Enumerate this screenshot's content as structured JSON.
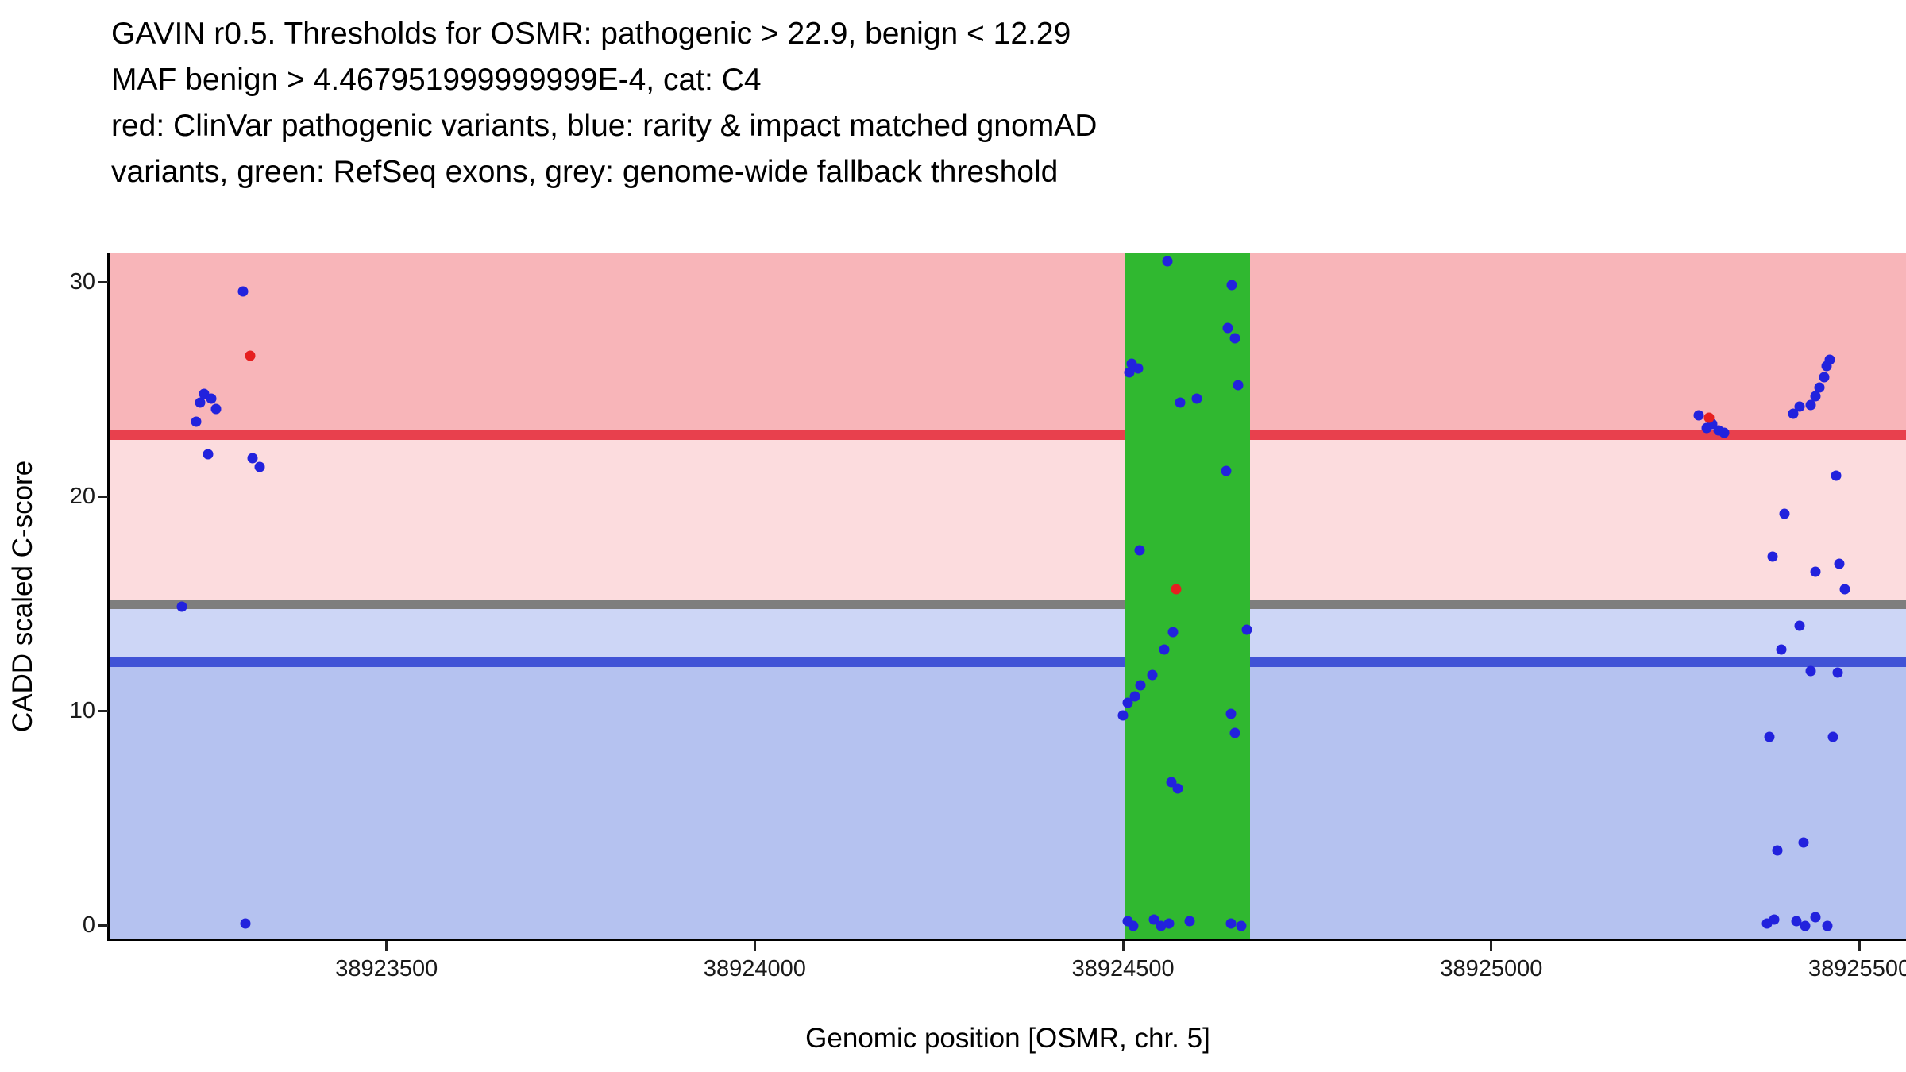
{
  "chart_data": {
    "type": "scatter",
    "title_lines": [
      "GAVIN r0.5. Thresholds for OSMR: pathogenic > 22.9, benign < 12.29",
      "MAF benign > 4.467951999999999E-4, cat: C4",
      "red: ClinVar pathogenic variants, blue: rarity & impact matched gnomAD",
      "variants, green: RefSeq exons, grey: genome-wide fallback threshold"
    ],
    "xlabel": "Genomic position [OSMR, chr. 5]",
    "ylabel": "CADD scaled C-score",
    "x_ticks": [
      38923500,
      38924000,
      38924500,
      38925000,
      38925500
    ],
    "y_ticks": [
      0,
      10,
      20,
      30
    ],
    "xlim": [
      38923124,
      38925563
    ],
    "ylim": [
      -0.6,
      31.4
    ],
    "thresholds": {
      "pathogenic": 22.9,
      "benign": 12.29,
      "fallback": 15.0
    },
    "exons": [
      {
        "start": 38924502,
        "end": 38924672
      }
    ],
    "colors": {
      "background": "#FFFFFF",
      "band_pathogenic": "#F8B5B9",
      "band_intermediate": "#FCDCDE",
      "band_benign_upper": "#CDD6F6",
      "band_benign": "#B5C2F0",
      "line_pathogenic": "#E8404D",
      "line_fallback": "#7E7E7E",
      "line_benign": "#4153D6",
      "exon": "#30B830",
      "point_blue": "#2222DD",
      "point_red": "#E62020",
      "axis": "#000000",
      "tick_text": "#1A1A1A"
    },
    "series": [
      {
        "key": "gnomad",
        "name": "rarity & impact matched gnomAD variants",
        "color": "#2222DD",
        "points": [
          [
            38923305,
            29.6
          ],
          [
            38923252,
            24.8
          ],
          [
            38923262,
            24.6
          ],
          [
            38923247,
            24.4
          ],
          [
            38923268,
            24.1
          ],
          [
            38923242,
            23.5
          ],
          [
            38923258,
            22.0
          ],
          [
            38923318,
            21.8
          ],
          [
            38923328,
            21.4
          ],
          [
            38923222,
            14.9
          ],
          [
            38923308,
            0.1
          ],
          [
            38924560,
            31.0
          ],
          [
            38924648,
            29.9
          ],
          [
            38924642,
            27.9
          ],
          [
            38924652,
            27.4
          ],
          [
            38924512,
            26.2
          ],
          [
            38924520,
            26.0
          ],
          [
            38924508,
            25.8
          ],
          [
            38924656,
            25.2
          ],
          [
            38924600,
            24.6
          ],
          [
            38924578,
            24.4
          ],
          [
            38924640,
            21.2
          ],
          [
            38924522,
            17.5
          ],
          [
            38924668,
            13.8
          ],
          [
            38924568,
            13.7
          ],
          [
            38924556,
            12.9
          ],
          [
            38924540,
            11.7
          ],
          [
            38924524,
            11.2
          ],
          [
            38924516,
            10.7
          ],
          [
            38924506,
            10.4
          ],
          [
            38924500,
            9.8
          ],
          [
            38924646,
            9.9
          ],
          [
            38924652,
            9.0
          ],
          [
            38924566,
            6.7
          ],
          [
            38924574,
            6.4
          ],
          [
            38924506,
            0.2
          ],
          [
            38924514,
            0.0
          ],
          [
            38924542,
            0.3
          ],
          [
            38924552,
            0.0
          ],
          [
            38924562,
            0.1
          ],
          [
            38924590,
            0.2
          ],
          [
            38924646,
            0.1
          ],
          [
            38924660,
            0.0
          ],
          [
            38925282,
            23.8
          ],
          [
            38925300,
            23.4
          ],
          [
            38925292,
            23.2
          ],
          [
            38925308,
            23.1
          ],
          [
            38925316,
            23.0
          ],
          [
            38925418,
            24.2
          ],
          [
            38925410,
            23.9
          ],
          [
            38925452,
            25.6
          ],
          [
            38925446,
            25.1
          ],
          [
            38925440,
            24.7
          ],
          [
            38925434,
            24.3
          ],
          [
            38925460,
            26.4
          ],
          [
            38925455,
            26.1
          ],
          [
            38925468,
            21.0
          ],
          [
            38925398,
            19.2
          ],
          [
            38925382,
            17.2
          ],
          [
            38925440,
            16.5
          ],
          [
            38925472,
            16.9
          ],
          [
            38925480,
            15.7
          ],
          [
            38925418,
            14.0
          ],
          [
            38925394,
            12.9
          ],
          [
            38925434,
            11.9
          ],
          [
            38925470,
            11.8
          ],
          [
            38925378,
            8.8
          ],
          [
            38925464,
            8.8
          ],
          [
            38925388,
            3.5
          ],
          [
            38925424,
            3.9
          ],
          [
            38925374,
            0.1
          ],
          [
            38925384,
            0.3
          ],
          [
            38925414,
            0.2
          ],
          [
            38925426,
            0.0
          ],
          [
            38925440,
            0.4
          ],
          [
            38925456,
            0.0
          ]
        ]
      },
      {
        "key": "clinvar",
        "name": "ClinVar pathogenic variants",
        "color": "#E62020",
        "points": [
          [
            38923315,
            26.6
          ],
          [
            38924572,
            15.7
          ],
          [
            38925296,
            23.7
          ]
        ]
      }
    ]
  }
}
